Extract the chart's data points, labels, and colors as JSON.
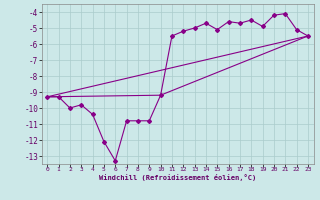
{
  "xlabel": "Windchill (Refroidissement éolien,°C)",
  "background_color": "#cce8e8",
  "grid_color": "#aacccc",
  "line_color": "#880088",
  "xlim": [
    -0.5,
    23.5
  ],
  "ylim": [
    -13.5,
    -3.5
  ],
  "yticks": [
    -4,
    -5,
    -6,
    -7,
    -8,
    -9,
    -10,
    -11,
    -12,
    -13
  ],
  "xticks": [
    0,
    1,
    2,
    3,
    4,
    5,
    6,
    7,
    8,
    9,
    10,
    11,
    12,
    13,
    14,
    15,
    16,
    17,
    18,
    19,
    20,
    21,
    22,
    23
  ],
  "line1_x": [
    0,
    1,
    2,
    3,
    4,
    5,
    6,
    7,
    8,
    9,
    10,
    11,
    12,
    13,
    14,
    15,
    16,
    17,
    18,
    19,
    20,
    21,
    22,
    23
  ],
  "line1_y": [
    -9.3,
    -9.3,
    -10.0,
    -9.8,
    -10.4,
    -12.1,
    -13.3,
    -10.8,
    -10.8,
    -10.8,
    -9.2,
    -5.5,
    -5.2,
    -5.0,
    -4.7,
    -5.1,
    -4.6,
    -4.7,
    -4.5,
    -4.9,
    -4.2,
    -4.1,
    -5.1,
    -5.5
  ],
  "line2_x": [
    0,
    23
  ],
  "line2_y": [
    -9.3,
    -5.5
  ],
  "line3_x": [
    0,
    10,
    23
  ],
  "line3_y": [
    -9.3,
    -9.2,
    -5.5
  ]
}
